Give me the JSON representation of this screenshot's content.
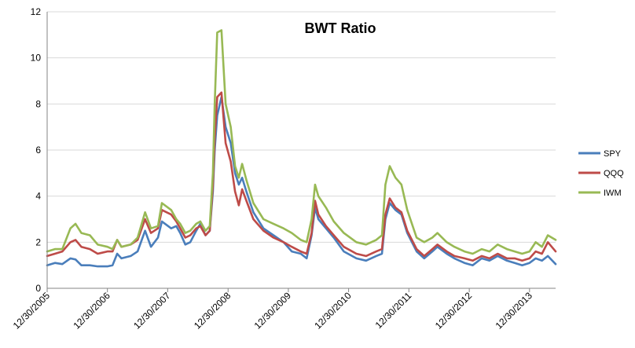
{
  "chart_data": {
    "type": "line",
    "title": "BWT Ratio",
    "xlabel": "",
    "ylabel": "",
    "ylim": [
      0,
      12
    ],
    "yticks": [
      0,
      2,
      4,
      6,
      8,
      10,
      12
    ],
    "xlim": [
      "2005-12-30",
      "2014-06-06"
    ],
    "xticks": [
      {
        "date": "2005-12-30",
        "label": "12/30/2005"
      },
      {
        "date": "2006-12-30",
        "label": "12/30/2006"
      },
      {
        "date": "2007-12-30",
        "label": "12/30/2007"
      },
      {
        "date": "2008-12-30",
        "label": "12/30/2008"
      },
      {
        "date": "2009-12-30",
        "label": "12/30/2009"
      },
      {
        "date": "2010-12-30",
        "label": "12/30/2010"
      },
      {
        "date": "2011-12-30",
        "label": "12/30/2011"
      },
      {
        "date": "2012-12-30",
        "label": "12/30/2012"
      },
      {
        "date": "2013-12-30",
        "label": "12/30/2013"
      }
    ],
    "grid": "horizontal",
    "legend": "right",
    "series": [
      {
        "name": "SPY",
        "color": "#4a7ebb",
        "points": [
          [
            "2005-12-30",
            1.0
          ],
          [
            "2006-02-15",
            1.1
          ],
          [
            "2006-04-01",
            1.05
          ],
          [
            "2006-05-20",
            1.3
          ],
          [
            "2006-06-20",
            1.25
          ],
          [
            "2006-07-25",
            1.0
          ],
          [
            "2006-09-15",
            1.0
          ],
          [
            "2006-11-01",
            0.95
          ],
          [
            "2006-12-30",
            0.95
          ],
          [
            "2007-01-30",
            1.0
          ],
          [
            "2007-02-27",
            1.5
          ],
          [
            "2007-03-25",
            1.3
          ],
          [
            "2007-05-20",
            1.4
          ],
          [
            "2007-07-01",
            1.6
          ],
          [
            "2007-08-15",
            2.5
          ],
          [
            "2007-09-20",
            1.8
          ],
          [
            "2007-11-01",
            2.2
          ],
          [
            "2007-11-25",
            2.9
          ],
          [
            "2008-01-20",
            2.6
          ],
          [
            "2008-02-20",
            2.7
          ],
          [
            "2008-03-15",
            2.4
          ],
          [
            "2008-04-15",
            1.9
          ],
          [
            "2008-05-15",
            2.0
          ],
          [
            "2008-06-20",
            2.5
          ],
          [
            "2008-07-15",
            2.8
          ],
          [
            "2008-08-15",
            2.3
          ],
          [
            "2008-09-10",
            2.5
          ],
          [
            "2008-09-29",
            4.2
          ],
          [
            "2008-10-10",
            6.0
          ],
          [
            "2008-10-25",
            7.5
          ],
          [
            "2008-11-20",
            8.3
          ],
          [
            "2008-12-15",
            7.0
          ],
          [
            "2009-01-15",
            6.3
          ],
          [
            "2009-02-10",
            5.0
          ],
          [
            "2009-03-05",
            4.5
          ],
          [
            "2009-03-25",
            4.8
          ],
          [
            "2009-04-20",
            4.2
          ],
          [
            "2009-06-01",
            3.3
          ],
          [
            "2009-08-01",
            2.6
          ],
          [
            "2009-10-01",
            2.3
          ],
          [
            "2009-12-01",
            2.0
          ],
          [
            "2010-01-20",
            1.6
          ],
          [
            "2010-03-15",
            1.5
          ],
          [
            "2010-04-20",
            1.3
          ],
          [
            "2010-05-20",
            2.3
          ],
          [
            "2010-06-10",
            3.5
          ],
          [
            "2010-06-30",
            3.0
          ],
          [
            "2010-08-15",
            2.6
          ],
          [
            "2010-10-01",
            2.2
          ],
          [
            "2010-12-01",
            1.6
          ],
          [
            "2011-02-15",
            1.3
          ],
          [
            "2011-04-15",
            1.2
          ],
          [
            "2011-06-15",
            1.4
          ],
          [
            "2011-07-20",
            1.5
          ],
          [
            "2011-08-10",
            3.0
          ],
          [
            "2011-09-05",
            3.7
          ],
          [
            "2011-10-10",
            3.4
          ],
          [
            "2011-11-15",
            3.2
          ],
          [
            "2011-12-20",
            2.4
          ],
          [
            "2012-02-15",
            1.6
          ],
          [
            "2012-04-01",
            1.3
          ],
          [
            "2012-05-20",
            1.6
          ],
          [
            "2012-06-20",
            1.8
          ],
          [
            "2012-08-15",
            1.5
          ],
          [
            "2012-10-01",
            1.3
          ],
          [
            "2012-12-01",
            1.1
          ],
          [
            "2013-01-20",
            1.0
          ],
          [
            "2013-03-15",
            1.3
          ],
          [
            "2013-05-01",
            1.2
          ],
          [
            "2013-06-20",
            1.4
          ],
          [
            "2013-08-15",
            1.2
          ],
          [
            "2013-10-01",
            1.1
          ],
          [
            "2013-11-15",
            1.0
          ],
          [
            "2013-12-30",
            1.1
          ],
          [
            "2014-02-05",
            1.3
          ],
          [
            "2014-03-15",
            1.2
          ],
          [
            "2014-04-20",
            1.4
          ],
          [
            "2014-06-06",
            1.05
          ]
        ]
      },
      {
        "name": "QQQ",
        "color": "#be4b48",
        "points": [
          [
            "2005-12-30",
            1.4
          ],
          [
            "2006-02-15",
            1.5
          ],
          [
            "2006-04-01",
            1.6
          ],
          [
            "2006-05-20",
            2.0
          ],
          [
            "2006-06-20",
            2.1
          ],
          [
            "2006-07-25",
            1.8
          ],
          [
            "2006-09-15",
            1.7
          ],
          [
            "2006-11-01",
            1.5
          ],
          [
            "2006-12-30",
            1.6
          ],
          [
            "2007-01-30",
            1.6
          ],
          [
            "2007-02-27",
            2.1
          ],
          [
            "2007-03-25",
            1.8
          ],
          [
            "2007-05-20",
            1.9
          ],
          [
            "2007-07-01",
            2.1
          ],
          [
            "2007-08-15",
            3.0
          ],
          [
            "2007-09-20",
            2.4
          ],
          [
            "2007-11-01",
            2.6
          ],
          [
            "2007-11-25",
            3.4
          ],
          [
            "2008-01-20",
            3.2
          ],
          [
            "2008-02-20",
            2.9
          ],
          [
            "2008-03-15",
            2.6
          ],
          [
            "2008-04-15",
            2.2
          ],
          [
            "2008-05-15",
            2.3
          ],
          [
            "2008-06-20",
            2.6
          ],
          [
            "2008-07-15",
            2.7
          ],
          [
            "2008-08-15",
            2.3
          ],
          [
            "2008-09-10",
            2.5
          ],
          [
            "2008-09-29",
            4.5
          ],
          [
            "2008-10-10",
            6.5
          ],
          [
            "2008-10-25",
            8.3
          ],
          [
            "2008-11-20",
            8.5
          ],
          [
            "2008-12-15",
            6.3
          ],
          [
            "2009-01-15",
            5.5
          ],
          [
            "2009-02-10",
            4.2
          ],
          [
            "2009-03-05",
            3.6
          ],
          [
            "2009-03-25",
            4.3
          ],
          [
            "2009-04-20",
            3.8
          ],
          [
            "2009-06-01",
            3.0
          ],
          [
            "2009-08-01",
            2.5
          ],
          [
            "2009-10-01",
            2.2
          ],
          [
            "2009-12-01",
            2.0
          ],
          [
            "2010-01-20",
            1.8
          ],
          [
            "2010-03-15",
            1.6
          ],
          [
            "2010-04-20",
            1.5
          ],
          [
            "2010-05-20",
            2.4
          ],
          [
            "2010-06-10",
            3.8
          ],
          [
            "2010-06-30",
            3.2
          ],
          [
            "2010-08-15",
            2.7
          ],
          [
            "2010-10-01",
            2.3
          ],
          [
            "2010-12-01",
            1.8
          ],
          [
            "2011-02-15",
            1.5
          ],
          [
            "2011-04-15",
            1.4
          ],
          [
            "2011-06-15",
            1.6
          ],
          [
            "2011-07-20",
            1.7
          ],
          [
            "2011-08-10",
            3.2
          ],
          [
            "2011-09-05",
            3.9
          ],
          [
            "2011-10-10",
            3.5
          ],
          [
            "2011-11-15",
            3.3
          ],
          [
            "2011-12-20",
            2.5
          ],
          [
            "2012-02-15",
            1.7
          ],
          [
            "2012-04-01",
            1.4
          ],
          [
            "2012-05-20",
            1.7
          ],
          [
            "2012-06-20",
            1.9
          ],
          [
            "2012-08-15",
            1.6
          ],
          [
            "2012-10-01",
            1.4
          ],
          [
            "2012-12-01",
            1.3
          ],
          [
            "2013-01-20",
            1.2
          ],
          [
            "2013-03-15",
            1.4
          ],
          [
            "2013-05-01",
            1.3
          ],
          [
            "2013-06-20",
            1.5
          ],
          [
            "2013-08-15",
            1.3
          ],
          [
            "2013-10-01",
            1.3
          ],
          [
            "2013-11-15",
            1.2
          ],
          [
            "2013-12-30",
            1.3
          ],
          [
            "2014-02-05",
            1.6
          ],
          [
            "2014-03-15",
            1.5
          ],
          [
            "2014-04-20",
            2.0
          ],
          [
            "2014-06-06",
            1.6
          ]
        ]
      },
      {
        "name": "IWM",
        "color": "#98b954",
        "points": [
          [
            "2005-12-30",
            1.6
          ],
          [
            "2006-02-15",
            1.7
          ],
          [
            "2006-04-01",
            1.7
          ],
          [
            "2006-05-20",
            2.6
          ],
          [
            "2006-06-20",
            2.8
          ],
          [
            "2006-07-25",
            2.4
          ],
          [
            "2006-09-15",
            2.3
          ],
          [
            "2006-11-01",
            1.9
          ],
          [
            "2006-12-30",
            1.8
          ],
          [
            "2007-01-30",
            1.7
          ],
          [
            "2007-02-27",
            2.1
          ],
          [
            "2007-03-25",
            1.8
          ],
          [
            "2007-05-20",
            1.9
          ],
          [
            "2007-07-01",
            2.2
          ],
          [
            "2007-08-15",
            3.3
          ],
          [
            "2007-09-20",
            2.6
          ],
          [
            "2007-11-01",
            2.7
          ],
          [
            "2007-11-25",
            3.7
          ],
          [
            "2008-01-20",
            3.4
          ],
          [
            "2008-02-20",
            3.0
          ],
          [
            "2008-03-15",
            2.8
          ],
          [
            "2008-04-15",
            2.4
          ],
          [
            "2008-05-15",
            2.5
          ],
          [
            "2008-06-20",
            2.8
          ],
          [
            "2008-07-15",
            2.9
          ],
          [
            "2008-08-15",
            2.5
          ],
          [
            "2008-09-10",
            2.7
          ],
          [
            "2008-09-29",
            5.0
          ],
          [
            "2008-10-10",
            8.0
          ],
          [
            "2008-10-25",
            11.1
          ],
          [
            "2008-11-20",
            11.2
          ],
          [
            "2008-12-15",
            8.0
          ],
          [
            "2009-01-15",
            7.0
          ],
          [
            "2009-02-10",
            5.3
          ],
          [
            "2009-03-05",
            4.8
          ],
          [
            "2009-03-25",
            5.4
          ],
          [
            "2009-04-20",
            4.7
          ],
          [
            "2009-06-01",
            3.7
          ],
          [
            "2009-08-01",
            3.0
          ],
          [
            "2009-10-01",
            2.8
          ],
          [
            "2009-12-01",
            2.6
          ],
          [
            "2010-01-20",
            2.4
          ],
          [
            "2010-03-15",
            2.1
          ],
          [
            "2010-04-20",
            2.0
          ],
          [
            "2010-05-20",
            3.0
          ],
          [
            "2010-06-10",
            4.5
          ],
          [
            "2010-06-30",
            4.0
          ],
          [
            "2010-08-15",
            3.5
          ],
          [
            "2010-10-01",
            2.9
          ],
          [
            "2010-12-01",
            2.4
          ],
          [
            "2011-02-15",
            2.0
          ],
          [
            "2011-04-15",
            1.9
          ],
          [
            "2011-06-15",
            2.1
          ],
          [
            "2011-07-20",
            2.3
          ],
          [
            "2011-08-10",
            4.5
          ],
          [
            "2011-09-05",
            5.3
          ],
          [
            "2011-10-10",
            4.8
          ],
          [
            "2011-11-15",
            4.5
          ],
          [
            "2011-12-20",
            3.4
          ],
          [
            "2012-02-15",
            2.2
          ],
          [
            "2012-04-01",
            2.0
          ],
          [
            "2012-05-20",
            2.2
          ],
          [
            "2012-06-20",
            2.4
          ],
          [
            "2012-08-15",
            2.0
          ],
          [
            "2012-10-01",
            1.8
          ],
          [
            "2012-12-01",
            1.6
          ],
          [
            "2013-01-20",
            1.5
          ],
          [
            "2013-03-15",
            1.7
          ],
          [
            "2013-05-01",
            1.6
          ],
          [
            "2013-06-20",
            1.9
          ],
          [
            "2013-08-15",
            1.7
          ],
          [
            "2013-10-01",
            1.6
          ],
          [
            "2013-11-15",
            1.5
          ],
          [
            "2013-12-30",
            1.6
          ],
          [
            "2014-02-05",
            2.0
          ],
          [
            "2014-03-15",
            1.8
          ],
          [
            "2014-04-20",
            2.3
          ],
          [
            "2014-06-06",
            2.1
          ]
        ]
      }
    ]
  }
}
